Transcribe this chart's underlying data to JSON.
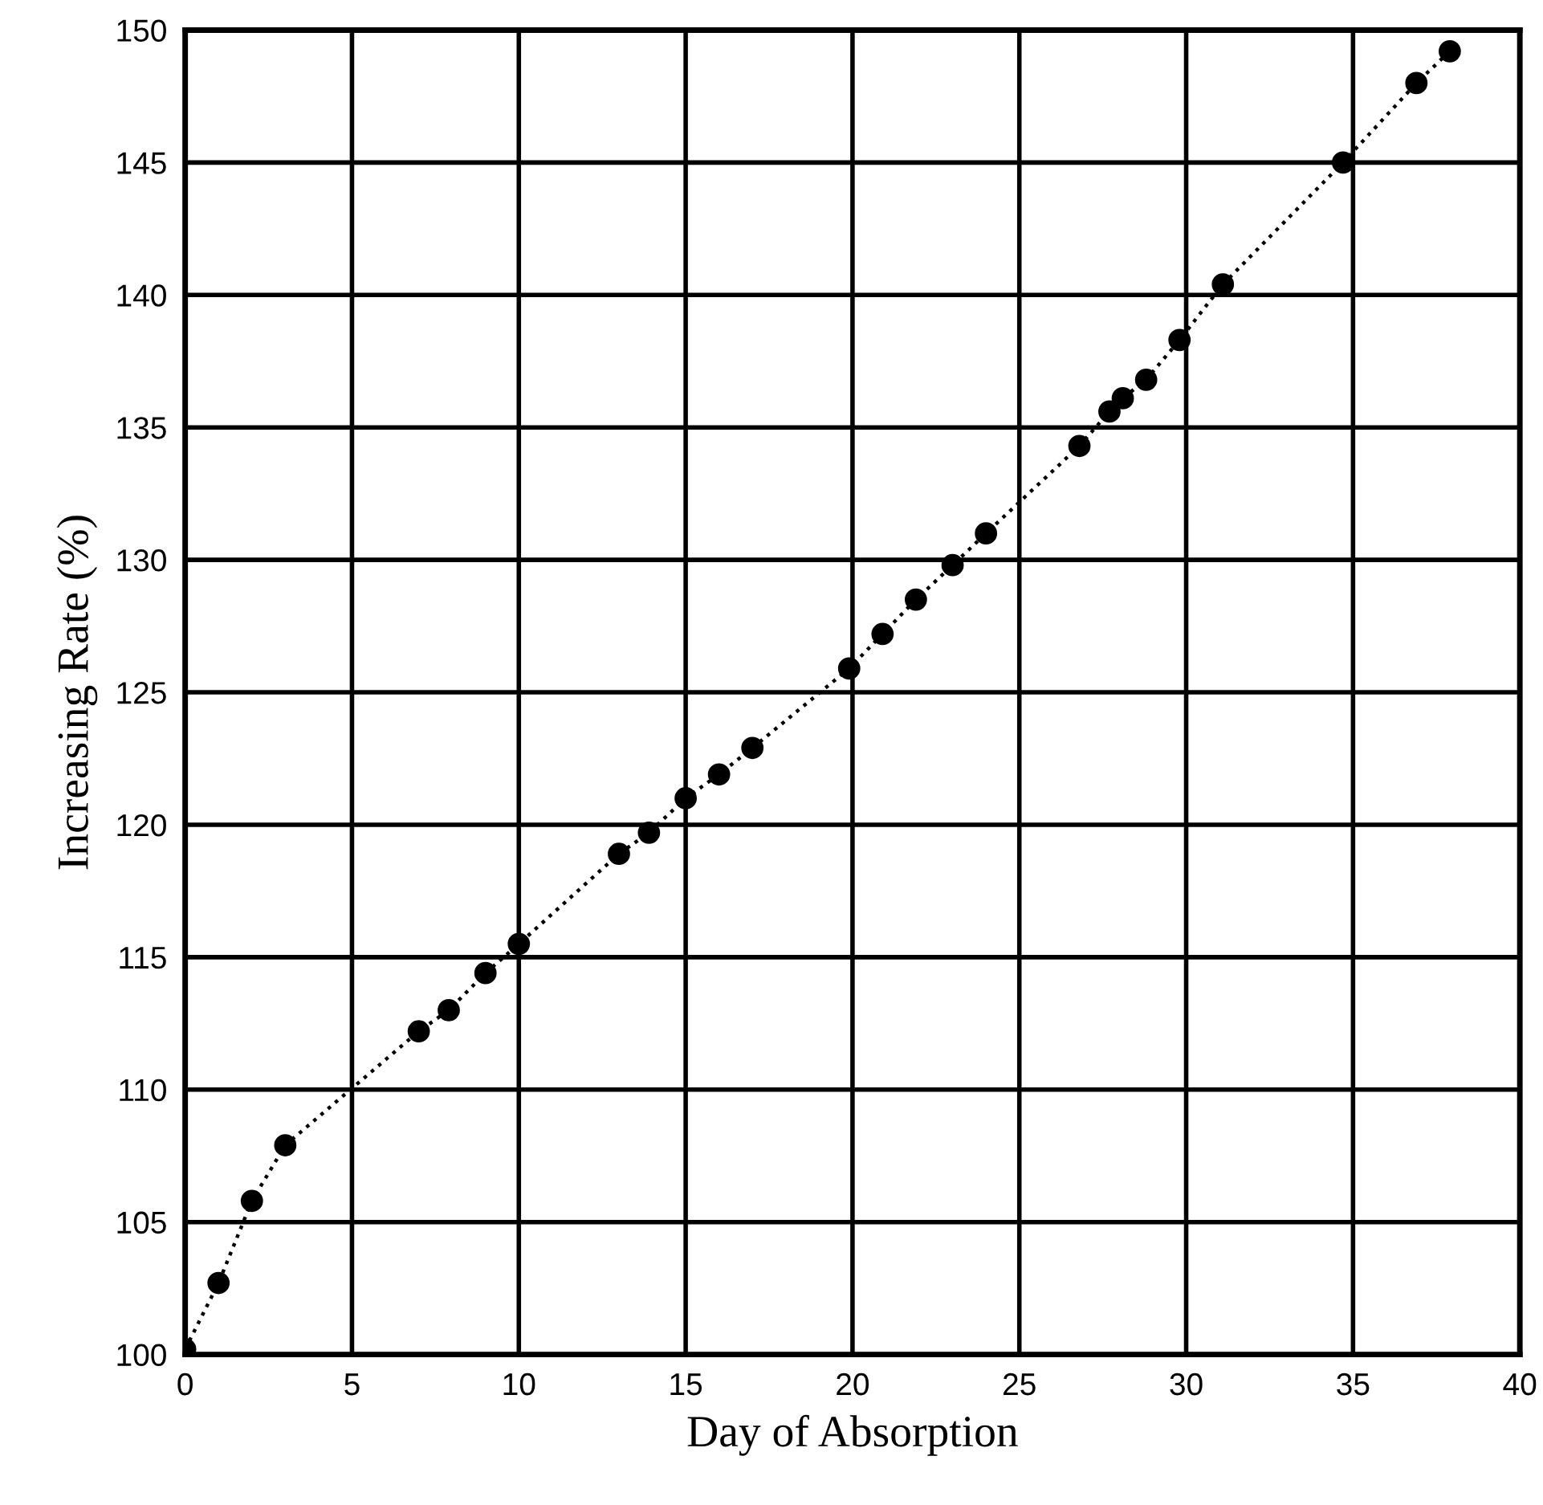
{
  "chart_data": {
    "type": "line",
    "xlabel": "Day of Absorption",
    "ylabel": "Increasing Rate (%)",
    "xlim": [
      0,
      40
    ],
    "ylim": [
      100,
      150
    ],
    "xticks": [
      0,
      5,
      10,
      15,
      20,
      25,
      30,
      35,
      40
    ],
    "yticks": [
      100,
      105,
      110,
      115,
      120,
      125,
      130,
      135,
      140,
      145,
      150
    ],
    "grid": true,
    "marker": "circle",
    "line_style": "dotted",
    "legend": false,
    "series": [
      {
        "color": "#000000",
        "x": [
          0,
          1.0,
          2.0,
          3.0,
          7.0,
          7.9,
          9.0,
          10.0,
          13.0,
          13.9,
          15.0,
          16.0,
          17.0,
          19.9,
          20.9,
          21.9,
          23.0,
          24.0,
          26.8,
          27.7,
          28.1,
          28.8,
          29.8,
          31.1,
          34.7,
          36.9,
          37.9
        ],
        "values": [
          100.2,
          102.7,
          105.8,
          107.9,
          112.2,
          113.0,
          114.4,
          115.5,
          118.9,
          119.7,
          121.0,
          121.9,
          122.9,
          125.9,
          127.2,
          128.5,
          129.8,
          131.0,
          134.3,
          135.6,
          136.1,
          136.8,
          138.3,
          140.4,
          145.0,
          148.0,
          149.2
        ]
      }
    ]
  }
}
